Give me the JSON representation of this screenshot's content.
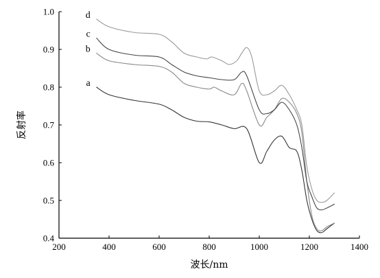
{
  "chart_data": {
    "type": "line",
    "xlabel": "波长/nm",
    "ylabel": "反射率",
    "xlim": [
      200,
      1400
    ],
    "ylim": [
      0.4,
      1.0
    ],
    "x_ticks": [
      200,
      400,
      600,
      800,
      1000,
      1200,
      1400
    ],
    "y_ticks": [
      0.4,
      0.5,
      0.6,
      0.7,
      0.8,
      0.9,
      1.0
    ],
    "x_tick_labels": [
      "200",
      "400",
      "600",
      "800",
      "1000",
      "1200",
      "1400"
    ],
    "y_tick_labels": [
      "0.4",
      "0.5",
      "0.6",
      "0.7",
      "0.8",
      "0.9",
      "1.0"
    ],
    "grid": false,
    "series": [
      {
        "name": "a",
        "color": "#333333",
        "x": [
          350,
          400,
          500,
          600,
          650,
          700,
          750,
          800,
          850,
          900,
          950,
          1000,
          1030,
          1060,
          1090,
          1120,
          1150,
          1170,
          1190,
          1210,
          1230,
          1250,
          1270,
          1300
        ],
        "y": [
          0.8,
          0.78,
          0.765,
          0.755,
          0.74,
          0.72,
          0.71,
          0.708,
          0.7,
          0.69,
          0.69,
          0.6,
          0.63,
          0.66,
          0.67,
          0.64,
          0.63,
          0.58,
          0.5,
          0.45,
          0.42,
          0.415,
          0.425,
          0.44
        ]
      },
      {
        "name": "b",
        "color": "#888888",
        "x": [
          350,
          400,
          500,
          600,
          650,
          700,
          750,
          800,
          820,
          850,
          900,
          930,
          950,
          1000,
          1030,
          1060,
          1090,
          1120,
          1150,
          1170,
          1190,
          1210,
          1230,
          1250,
          1270,
          1300
        ],
        "y": [
          0.89,
          0.87,
          0.86,
          0.855,
          0.84,
          0.81,
          0.8,
          0.795,
          0.8,
          0.79,
          0.78,
          0.81,
          0.79,
          0.7,
          0.72,
          0.74,
          0.77,
          0.76,
          0.73,
          0.68,
          0.55,
          0.46,
          0.425,
          0.42,
          0.43,
          0.44
        ]
      },
      {
        "name": "c",
        "color": "#444444",
        "x": [
          350,
          400,
          500,
          600,
          650,
          700,
          750,
          800,
          850,
          900,
          930,
          950,
          1000,
          1030,
          1060,
          1090,
          1120,
          1150,
          1170,
          1190,
          1210,
          1230,
          1250,
          1270,
          1300
        ],
        "y": [
          0.93,
          0.9,
          0.885,
          0.88,
          0.86,
          0.84,
          0.83,
          0.825,
          0.82,
          0.82,
          0.84,
          0.83,
          0.74,
          0.73,
          0.74,
          0.76,
          0.74,
          0.7,
          0.64,
          0.55,
          0.51,
          0.48,
          0.475,
          0.48,
          0.49
        ]
      },
      {
        "name": "d",
        "color": "#999999",
        "x": [
          350,
          400,
          500,
          600,
          650,
          700,
          750,
          790,
          810,
          850,
          880,
          910,
          930,
          950,
          970,
          1000,
          1030,
          1060,
          1090,
          1120,
          1150,
          1170,
          1190,
          1210,
          1230,
          1250,
          1270,
          1300
        ],
        "y": [
          0.98,
          0.96,
          0.945,
          0.94,
          0.92,
          0.89,
          0.88,
          0.875,
          0.88,
          0.87,
          0.86,
          0.87,
          0.89,
          0.905,
          0.88,
          0.79,
          0.78,
          0.79,
          0.805,
          0.78,
          0.74,
          0.7,
          0.59,
          0.53,
          0.5,
          0.495,
          0.5,
          0.52
        ]
      }
    ]
  }
}
